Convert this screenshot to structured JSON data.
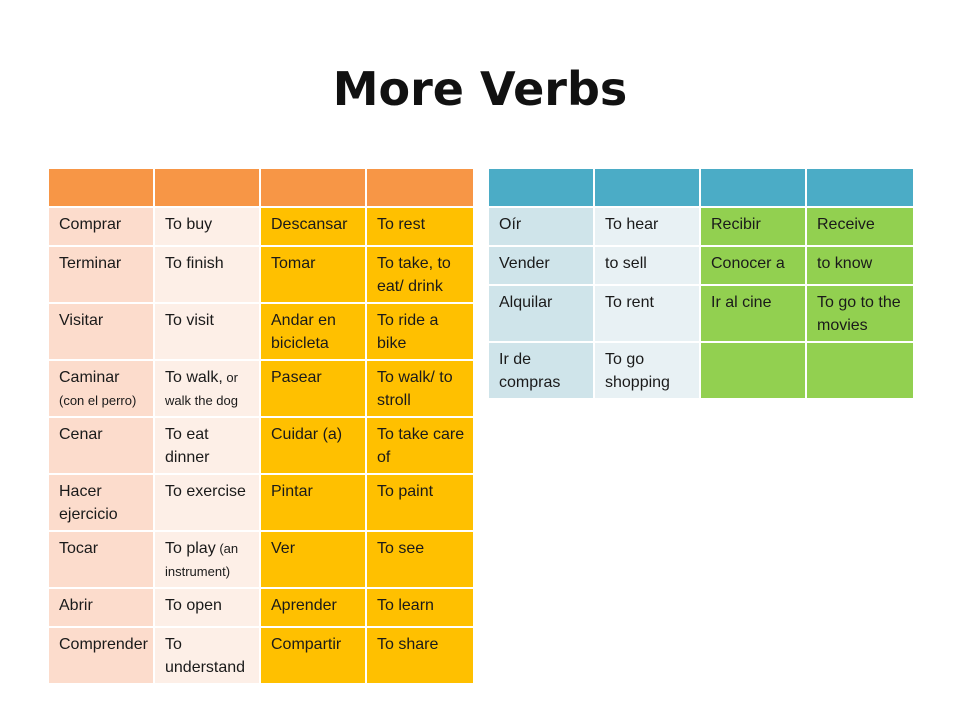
{
  "title": "More Verbs",
  "colors": {
    "left_header": "#f79646",
    "left_col_pair": "#fcdccc",
    "left_col_pair_alt": "#fdefe7",
    "left_amber": "#ffc000",
    "right_header": "#4bacc6",
    "right_col_pair": "#cfe4ea",
    "right_col_pair_alt": "#e8f1f4",
    "right_green": "#92d050"
  },
  "left_table": {
    "rows": [
      {
        "c1": "Comprar",
        "c2": "To buy",
        "c3": "Descansar",
        "c4": "To rest"
      },
      {
        "c1": "Terminar",
        "c2": "To finish",
        "c3": "Tomar",
        "c4": "To take, to eat/ drink"
      },
      {
        "c1": "Visitar",
        "c2": "To visit",
        "c3": "Andar en bicicleta",
        "c4": "To ride a bike"
      },
      {
        "c1": "Caminar",
        "c1_note": "(con el perro)",
        "c2": "To walk,",
        "c2_note": " or walk  the dog",
        "c3": "Pasear",
        "c4": "To walk/ to stroll"
      },
      {
        "c1": "Cenar",
        "c2": "To eat dinner",
        "c3": "Cuidar (a)",
        "c4": "To take care of"
      },
      {
        "c1": "Hacer ejercicio",
        "c2": "To exercise",
        "c3": "Pintar",
        "c4": "To paint"
      },
      {
        "c1": "Tocar",
        "c2": "To play",
        "c2_note": " (an instrument)",
        "c3": "Ver",
        "c4": "To see"
      },
      {
        "c1": "Abrir",
        "c2": "To open",
        "c3": "Aprender",
        "c4": "To learn"
      },
      {
        "c1": "Comprender",
        "c2": "To understand",
        "c3": "Compartir",
        "c4": "To share"
      }
    ]
  },
  "right_table": {
    "rows": [
      {
        "c1": "Oír",
        "c2": "To hear",
        "c3": "Recibir",
        "c4": "Receive"
      },
      {
        "c1": "Vender",
        "c2": "to sell",
        "c3": "Conocer a",
        "c4": "to know"
      },
      {
        "c1": "Alquilar",
        "c2": "To rent",
        "c3": "Ir al cine",
        "c4": "To go to the movies"
      },
      {
        "c1": "Ir de compras",
        "c2": "To go shopping",
        "c3": "",
        "c4": ""
      }
    ]
  }
}
